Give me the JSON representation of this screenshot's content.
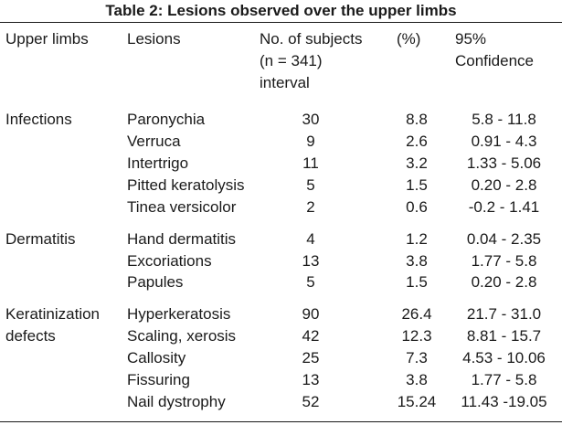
{
  "title": "Table 2: Lesions observed over the upper limbs",
  "headers": {
    "limb": "Upper limbs",
    "lesion": "Lesions",
    "num_line1": "No. of subjects",
    "num_line2": "(n = 341)",
    "num_line3": "interval",
    "pct": "(%)",
    "ci_line1": "95%",
    "ci_line2": "Confidence"
  },
  "groups": [
    {
      "name_lines": [
        "Infections"
      ],
      "rows": [
        {
          "lesion": "Paronychia",
          "n": "30",
          "pct": "8.8",
          "ci": "5.8 - 11.8"
        },
        {
          "lesion": "Verruca",
          "n": "9",
          "pct": "2.6",
          "ci": "0.91 - 4.3"
        },
        {
          "lesion": "Intertrigo",
          "n": "11",
          "pct": "3.2",
          "ci": "1.33 - 5.06"
        },
        {
          "lesion": "Pitted keratolysis",
          "n": "5",
          "pct": "1.5",
          "ci": "0.20 - 2.8"
        },
        {
          "lesion": "Tinea versicolor",
          "n": "2",
          "pct": "0.6",
          "ci": "-0.2 - 1.41"
        }
      ]
    },
    {
      "name_lines": [
        "Dermatitis"
      ],
      "rows": [
        {
          "lesion": "Hand dermatitis",
          "n": "4",
          "pct": "1.2",
          "ci": "0.04 - 2.35"
        },
        {
          "lesion": "Excoriations",
          "n": "13",
          "pct": "3.8",
          "ci": "1.77 - 5.8"
        },
        {
          "lesion": "Papules",
          "n": "5",
          "pct": "1.5",
          "ci": "0.20 - 2.8"
        }
      ]
    },
    {
      "name_lines": [
        "Keratinization",
        "defects"
      ],
      "rows": [
        {
          "lesion": "Hyperkeratosis",
          "n": "90",
          "pct": "26.4",
          "ci": "21.7 - 31.0"
        },
        {
          "lesion": "Scaling, xerosis",
          "n": "42",
          "pct": "12.3",
          "ci": "8.81 - 15.7"
        },
        {
          "lesion": "Callosity",
          "n": "25",
          "pct": "7.3",
          "ci": "4.53 - 10.06"
        },
        {
          "lesion": "Fissuring",
          "n": "13",
          "pct": "3.8",
          "ci": "1.77 - 5.8"
        },
        {
          "lesion": "Nail dystrophy",
          "n": "52",
          "pct": "15.24",
          "ci": "11.43 -19.05"
        }
      ]
    }
  ]
}
